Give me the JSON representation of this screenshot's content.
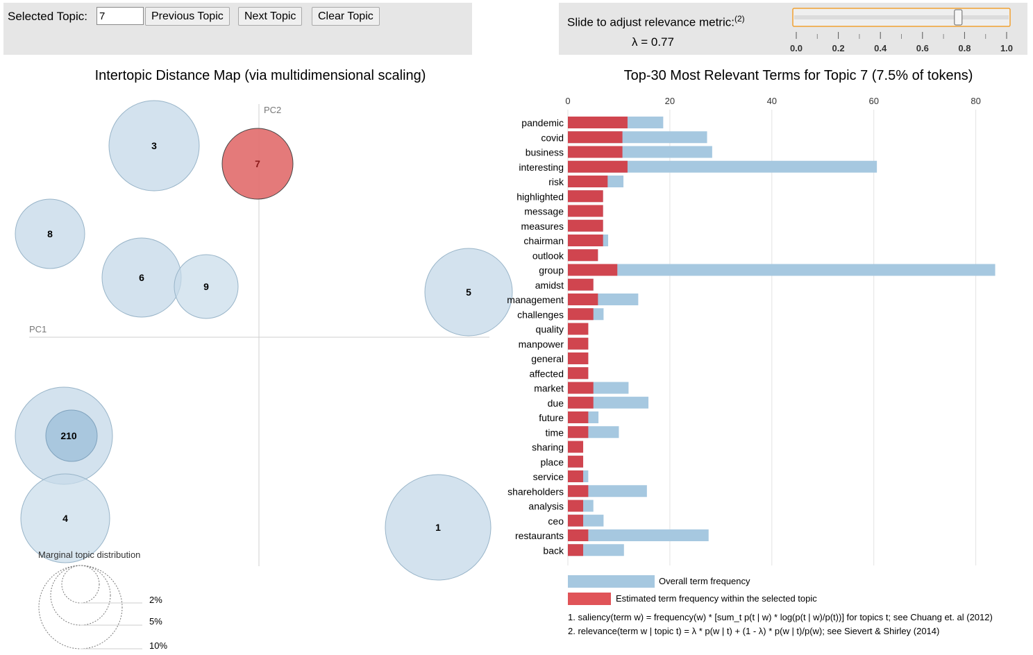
{
  "controls": {
    "selected_label": "Selected Topic:",
    "selected_value": "7",
    "prev_label": "Previous Topic",
    "next_label": "Next Topic",
    "clear_label": "Clear Topic"
  },
  "slider": {
    "label": "Slide to adjust relevance metric:",
    "footnote_mark": "(2)",
    "lambda_text": "λ = 0.77",
    "value": 0.77,
    "ticks": [
      "0.0",
      "0.2",
      "0.4",
      "0.6",
      "0.8",
      "1.0"
    ],
    "accent_color": "#f0a030"
  },
  "map": {
    "title": "Intertopic Distance Map (via multidimensional scaling)",
    "pc1_label": "PC1",
    "pc2_label": "PC2",
    "selected_color": "#e37373",
    "default_color": "#c8dbea",
    "topics": [
      {
        "label": "3",
        "selected": false
      },
      {
        "label": "7",
        "selected": true
      },
      {
        "label": "8",
        "selected": false
      },
      {
        "label": "6",
        "selected": false
      },
      {
        "label": "9",
        "selected": false
      },
      {
        "label": "5",
        "selected": false
      },
      {
        "label": "2",
        "selected": false
      },
      {
        "label": "10",
        "selected": false
      },
      {
        "label": "4",
        "selected": false
      },
      {
        "label": "1",
        "selected": false
      }
    ],
    "center_label": "210",
    "marginal": {
      "title": "Marginal topic distribution",
      "levels": [
        "2%",
        "5%",
        "10%"
      ]
    }
  },
  "chart_data": {
    "type": "bar",
    "title": "Top-30 Most Relevant Terms for Topic 7 (7.5% of tokens)",
    "orientation": "horizontal",
    "xlim": [
      0,
      84
    ],
    "xticks": [
      0,
      20,
      40,
      60,
      80
    ],
    "categories": [
      "pandemic",
      "covid",
      "business",
      "interesting",
      "risk",
      "highlighted",
      "message",
      "measures",
      "chairman",
      "outlook",
      "group",
      "amidst",
      "management",
      "challenges",
      "quality",
      "manpower",
      "general",
      "affected",
      "market",
      "due",
      "future",
      "time",
      "sharing",
      "place",
      "service",
      "shareholders",
      "analysis",
      "ceo",
      "restaurants",
      "back"
    ],
    "series": [
      {
        "name": "Overall term frequency",
        "color": "#a6c8e0",
        "values": [
          18.7,
          27.3,
          28.3,
          60.6,
          10.9,
          6.9,
          6.9,
          6.9,
          7.9,
          5.9,
          83.8,
          5.0,
          13.8,
          7.0,
          4.0,
          4.0,
          4.0,
          4.0,
          11.9,
          15.8,
          6.0,
          10.0,
          3.0,
          3.0,
          4.0,
          15.5,
          5.0,
          7.0,
          27.6,
          11.0
        ]
      },
      {
        "name": "Estimated term frequency within the selected topic",
        "color": "#d0454f",
        "values": [
          11.7,
          10.7,
          10.7,
          11.7,
          7.8,
          6.9,
          6.9,
          6.9,
          6.9,
          5.9,
          9.7,
          5.0,
          5.9,
          5.0,
          4.0,
          4.0,
          4.0,
          4.0,
          5.0,
          5.0,
          4.0,
          4.0,
          3.0,
          3.0,
          3.0,
          4.0,
          3.0,
          3.0,
          4.0,
          3.0
        ]
      }
    ]
  },
  "footnotes": {
    "note1": "1. saliency(term w) = frequency(w) * [sum_t p(t | w) * log(p(t | w)/p(t))] for topics t; see Chuang et. al (2012)",
    "note2": "2. relevance(term w | topic t) = λ * p(w | t) + (1 - λ) * p(w | t)/p(w); see Sievert & Shirley (2014)"
  }
}
